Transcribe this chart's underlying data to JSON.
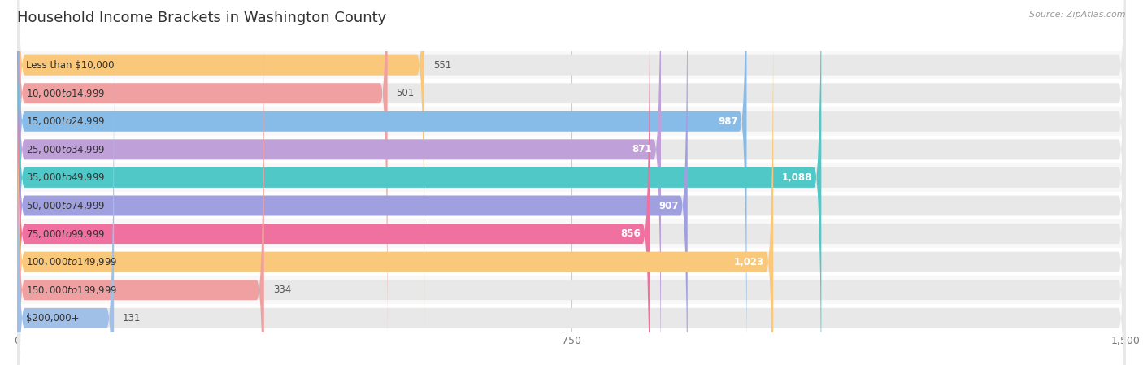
{
  "title": "Household Income Brackets in Washington County",
  "source": "Source: ZipAtlas.com",
  "categories": [
    "Less than $10,000",
    "$10,000 to $14,999",
    "$15,000 to $24,999",
    "$25,000 to $34,999",
    "$35,000 to $49,999",
    "$50,000 to $74,999",
    "$75,000 to $99,999",
    "$100,000 to $149,999",
    "$150,000 to $199,999",
    "$200,000+"
  ],
  "values": [
    551,
    501,
    987,
    871,
    1088,
    907,
    856,
    1023,
    334,
    131
  ],
  "bar_colors": [
    "#f9c87a",
    "#f0a0a0",
    "#88bce8",
    "#c0a0d8",
    "#50c8c8",
    "#a0a0e0",
    "#f070a0",
    "#f9c87a",
    "#f0a0a0",
    "#a0c0e8"
  ],
  "xlim": [
    0,
    1500
  ],
  "xticks": [
    0,
    750,
    1500
  ],
  "bar_bg_color": "#e8e8e8",
  "row_colors": [
    "#f8f8f8",
    "#ffffff"
  ],
  "title_fontsize": 13,
  "label_fontsize": 8.5,
  "value_fontsize": 8.5,
  "bar_height": 0.72,
  "value_threshold": 700
}
